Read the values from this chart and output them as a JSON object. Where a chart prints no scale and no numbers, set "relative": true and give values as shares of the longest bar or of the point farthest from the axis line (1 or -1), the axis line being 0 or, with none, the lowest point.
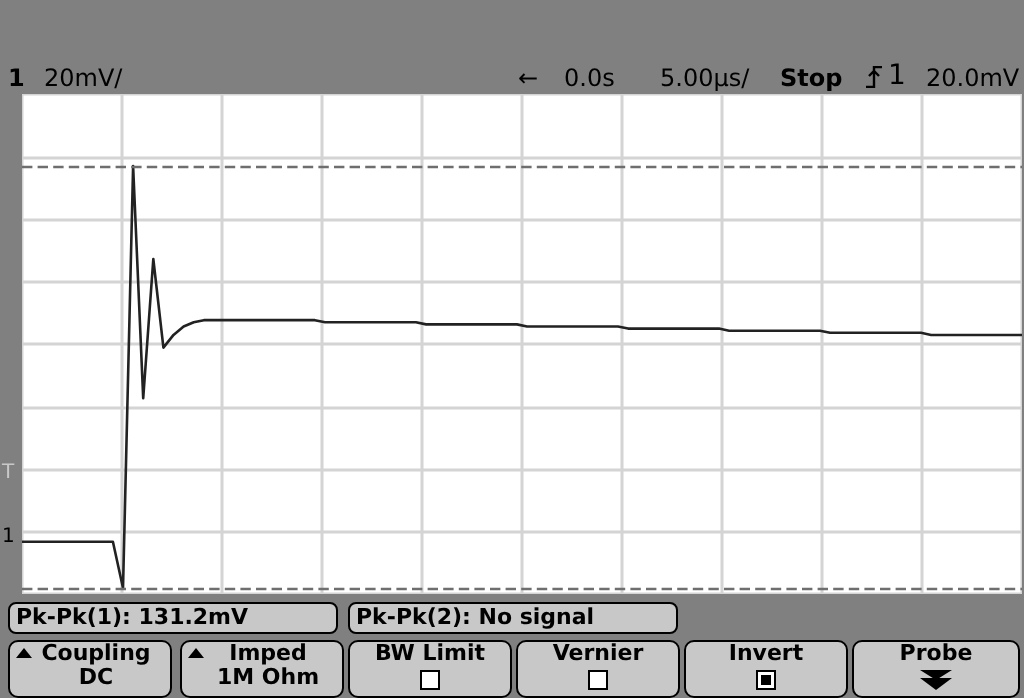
{
  "chart_data": {
    "type": "line",
    "relative": true,
    "grid": true,
    "line_style": "solid",
    "categories": [
      null,
      null,
      null,
      null,
      null,
      null,
      null,
      null,
      null,
      null,
      null,
      null,
      null,
      null,
      null,
      null,
      null,
      null,
      null,
      null,
      null,
      null,
      null,
      null,
      null,
      null,
      null,
      null,
      null,
      null,
      null,
      null,
      null,
      null,
      null,
      null,
      null,
      null,
      null,
      null,
      null,
      null,
      null,
      null,
      null,
      null,
      null,
      null,
      null,
      null,
      null,
      null,
      null,
      null,
      null,
      null,
      null,
      null,
      null,
      null,
      null,
      null,
      null,
      null,
      null,
      null,
      null,
      null,
      null,
      null,
      null,
      null,
      null,
      null,
      null,
      null,
      null,
      null,
      null,
      null,
      null,
      null,
      null,
      null,
      null,
      null,
      null,
      null,
      null,
      null,
      null,
      null,
      null,
      null,
      null,
      null,
      null,
      null,
      null,
      null
    ],
    "series": [
      {
        "color": "#222222",
        "values": [
          0.11,
          0.11,
          0.11,
          0.11,
          0.11,
          0.11,
          0.11,
          0.11,
          0.11,
          0.11,
          0,
          1,
          0.45,
          0.78,
          0.57,
          0.6,
          0.62,
          0.63,
          0.635,
          0.635,
          0.635,
          0.635,
          0.635,
          0.635,
          0.635,
          0.635,
          0.635,
          0.635,
          0.635,
          0.635,
          0.63,
          0.63,
          0.63,
          0.63,
          0.63,
          0.63,
          0.63,
          0.63,
          0.63,
          0.63,
          0.625,
          0.625,
          0.625,
          0.625,
          0.625,
          0.625,
          0.625,
          0.625,
          0.625,
          0.625,
          0.62,
          0.62,
          0.62,
          0.62,
          0.62,
          0.62,
          0.62,
          0.62,
          0.62,
          0.62,
          0.615,
          0.615,
          0.615,
          0.615,
          0.615,
          0.615,
          0.615,
          0.615,
          0.615,
          0.615,
          0.61,
          0.61,
          0.61,
          0.61,
          0.61,
          0.61,
          0.61,
          0.61,
          0.61,
          0.61,
          0.605,
          0.605,
          0.605,
          0.605,
          0.605,
          0.605,
          0.605,
          0.605,
          0.605,
          0.605,
          0.6,
          0.6,
          0.6,
          0.6,
          0.6,
          0.6,
          0.6,
          0.6,
          0.6,
          0.6
        ]
      }
    ],
    "ref_lines": [
      {
        "axis": "y",
        "value": 1,
        "color": "#6e6e6e",
        "line_style": "dashed"
      },
      {
        "axis": "y",
        "value": 0,
        "color": "#6e6e6e",
        "line_style": "dashed"
      }
    ],
    "annotations": [
      "1",
      "20mV/",
      "←",
      "0.0s",
      "5.00µs/",
      "Stop",
      "1",
      "20.0mV",
      "1",
      "T",
      "Pk-Pk(1): 131.2mV",
      "Pk-Pk(2): No signal",
      "Coupling\nDC",
      "Imped\n1M Ohm",
      "BW Limit",
      "Vernier",
      "Invert",
      "Probe"
    ]
  }
}
